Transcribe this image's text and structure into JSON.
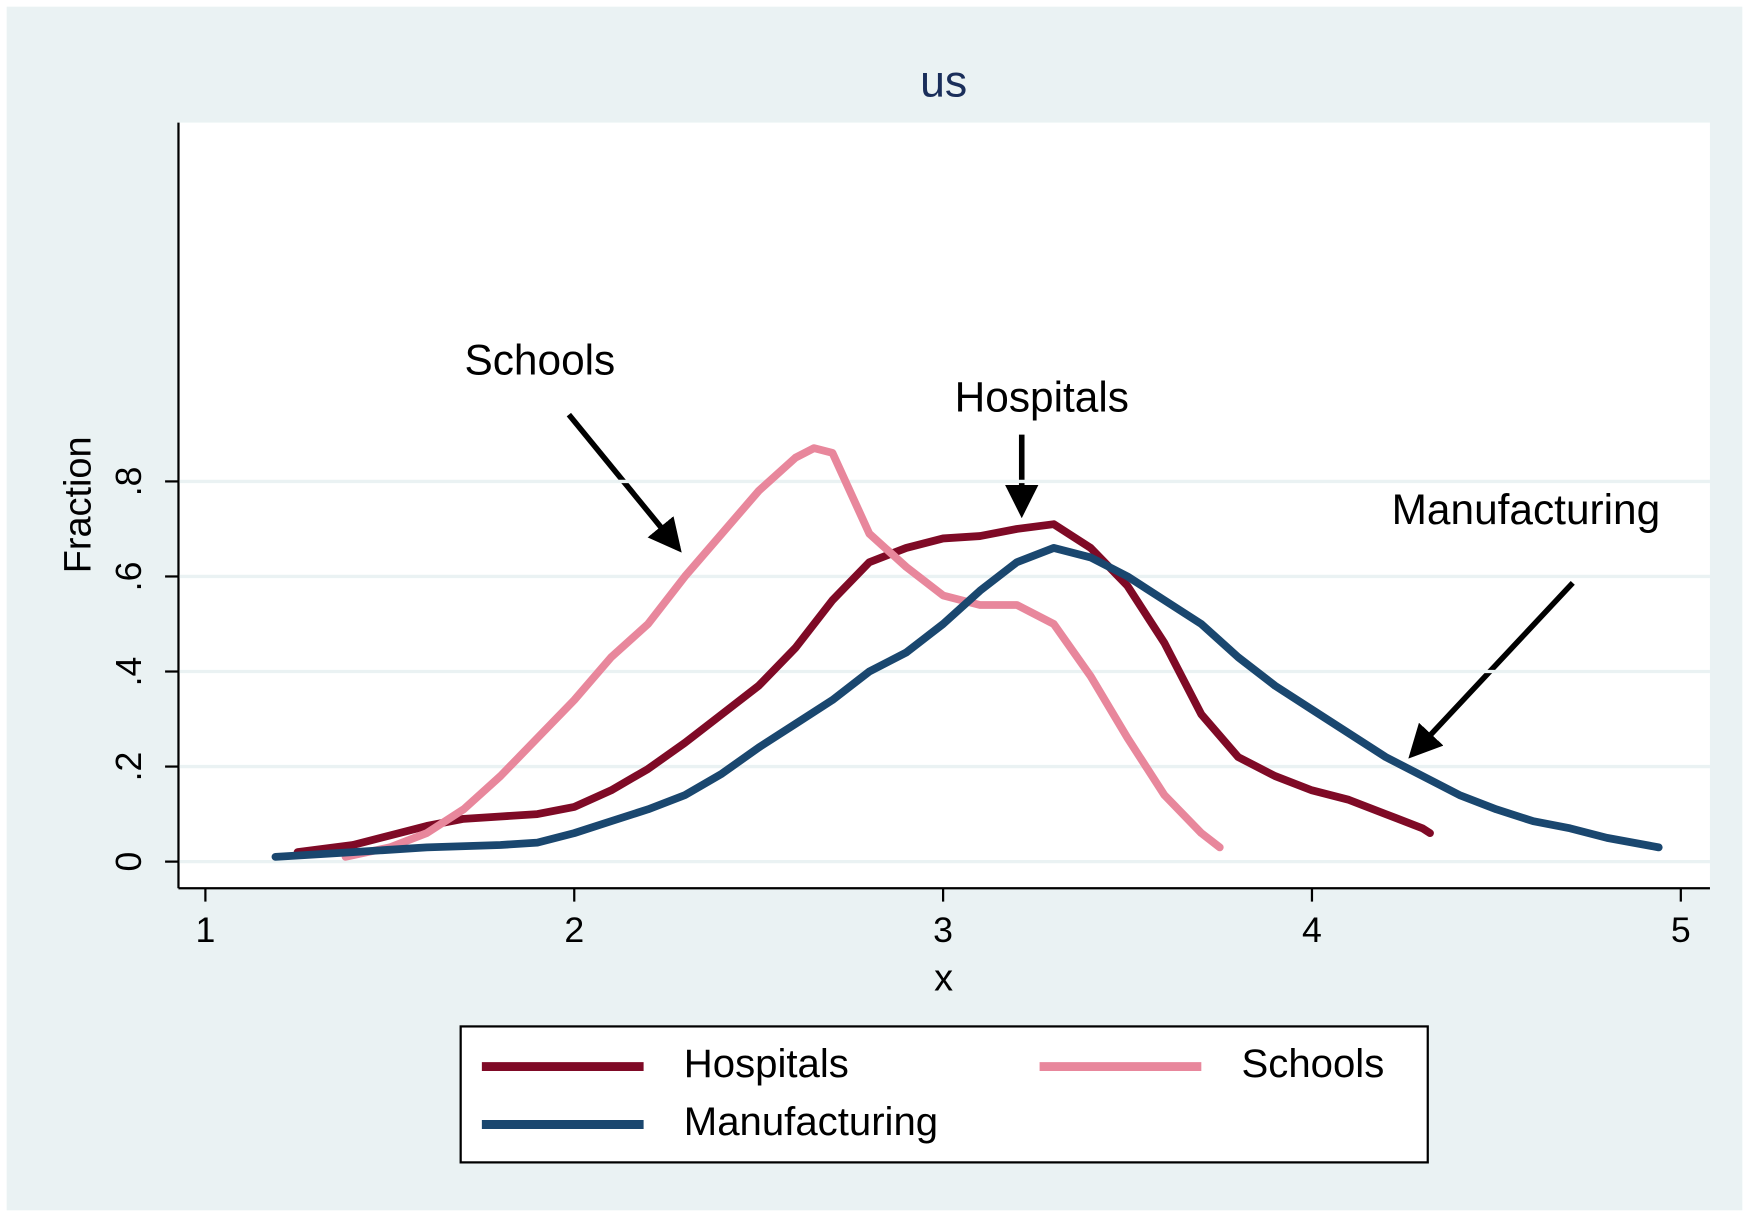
{
  "chart_data": {
    "type": "line",
    "title": "us",
    "x_label": "x",
    "y_label": "Fraction",
    "xlim": [
      0.927,
      5.079
    ],
    "ylim": [
      -0.056,
      1.555
    ],
    "xticks": [
      1,
      2,
      3,
      4,
      5
    ],
    "yticks": [
      0,
      {
        "value": 0.2,
        "label": ".2"
      },
      {
        "value": 0.4,
        "label": ".4"
      },
      {
        "value": 0.6,
        "label": ".6"
      },
      {
        "value": 0.8,
        "label": ".8"
      }
    ],
    "grid": true,
    "series": [
      {
        "name": "Hospitals",
        "color": "#7f0a26",
        "x": [
          1.25,
          1.4,
          1.5,
          1.6,
          1.7,
          1.8,
          1.9,
          2.0,
          2.1,
          2.2,
          2.3,
          2.4,
          2.5,
          2.6,
          2.7,
          2.8,
          2.9,
          3.0,
          3.1,
          3.2,
          3.3,
          3.4,
          3.5,
          3.6,
          3.7,
          3.8,
          3.9,
          4.0,
          4.1,
          4.2,
          4.3,
          4.32
        ],
        "values": [
          0.02,
          0.035,
          0.055,
          0.075,
          0.09,
          0.095,
          0.1,
          0.115,
          0.15,
          0.195,
          0.25,
          0.31,
          0.37,
          0.45,
          0.55,
          0.63,
          0.66,
          0.68,
          0.685,
          0.7,
          0.71,
          0.66,
          0.58,
          0.46,
          0.31,
          0.22,
          0.18,
          0.15,
          0.13,
          0.1,
          0.07,
          0.06
        ]
      },
      {
        "name": "Schools",
        "color": "#e8879c",
        "x": [
          1.38,
          1.5,
          1.6,
          1.7,
          1.8,
          1.9,
          2.0,
          2.1,
          2.2,
          2.3,
          2.4,
          2.5,
          2.6,
          2.65,
          2.7,
          2.8,
          2.9,
          3.0,
          3.1,
          3.2,
          3.3,
          3.4,
          3.5,
          3.6,
          3.7,
          3.75
        ],
        "values": [
          0.01,
          0.03,
          0.06,
          0.11,
          0.18,
          0.26,
          0.34,
          0.43,
          0.5,
          0.6,
          0.69,
          0.78,
          0.85,
          0.87,
          0.86,
          0.69,
          0.62,
          0.56,
          0.54,
          0.54,
          0.5,
          0.39,
          0.26,
          0.14,
          0.06,
          0.03
        ]
      },
      {
        "name": "Manufacturing",
        "color": "#1a476f",
        "x": [
          1.19,
          1.4,
          1.6,
          1.8,
          1.9,
          2.0,
          2.1,
          2.2,
          2.3,
          2.4,
          2.5,
          2.6,
          2.7,
          2.8,
          2.9,
          3.0,
          3.1,
          3.2,
          3.3,
          3.4,
          3.5,
          3.6,
          3.7,
          3.8,
          3.9,
          4.0,
          4.1,
          4.2,
          4.3,
          4.4,
          4.5,
          4.6,
          4.7,
          4.8,
          4.94
        ],
        "values": [
          0.01,
          0.02,
          0.03,
          0.035,
          0.04,
          0.06,
          0.085,
          0.11,
          0.14,
          0.185,
          0.24,
          0.29,
          0.34,
          0.4,
          0.44,
          0.5,
          0.57,
          0.63,
          0.66,
          0.64,
          0.6,
          0.55,
          0.5,
          0.43,
          0.37,
          0.32,
          0.27,
          0.22,
          0.18,
          0.14,
          0.11,
          0.085,
          0.07,
          0.05,
          0.03
        ]
      }
    ],
    "annotations": [
      "Schools",
      "Hospitals",
      "Manufacturing"
    ]
  }
}
